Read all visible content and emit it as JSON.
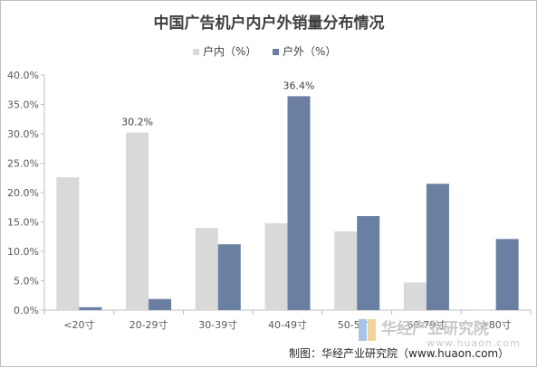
{
  "chart_data": {
    "type": "bar",
    "title": "中国广告机户内户外销量分布情况",
    "categories": [
      "<20寸",
      "20-29寸",
      "30-39寸",
      "40-49寸",
      "50-59寸",
      "60-79寸",
      ">80寸"
    ],
    "series": [
      {
        "name": "户内（%）",
        "color": "#d9d9d9",
        "values": [
          22.6,
          30.2,
          14.0,
          14.8,
          13.4,
          4.7,
          0.1
        ]
      },
      {
        "name": "户外（%）",
        "color": "#6b7fa3",
        "values": [
          0.5,
          1.9,
          11.2,
          36.4,
          16.0,
          21.5,
          12.1
        ]
      }
    ],
    "data_labels": [
      {
        "series": 0,
        "index": 1,
        "text": "30.2%"
      },
      {
        "series": 1,
        "index": 3,
        "text": "36.4%"
      }
    ],
    "y_ticks": [
      "0.0%",
      "5.0%",
      "10.0%",
      "15.0%",
      "20.0%",
      "25.0%",
      "30.0%",
      "35.0%",
      "40.0%"
    ],
    "ylim": [
      0,
      40
    ],
    "legend_position": "top",
    "grid": false
  },
  "source": "制图：华经产业研究院（www.huaon.com）",
  "watermark": {
    "name": "华经产业研究院",
    "url": "www.huaon.com"
  }
}
